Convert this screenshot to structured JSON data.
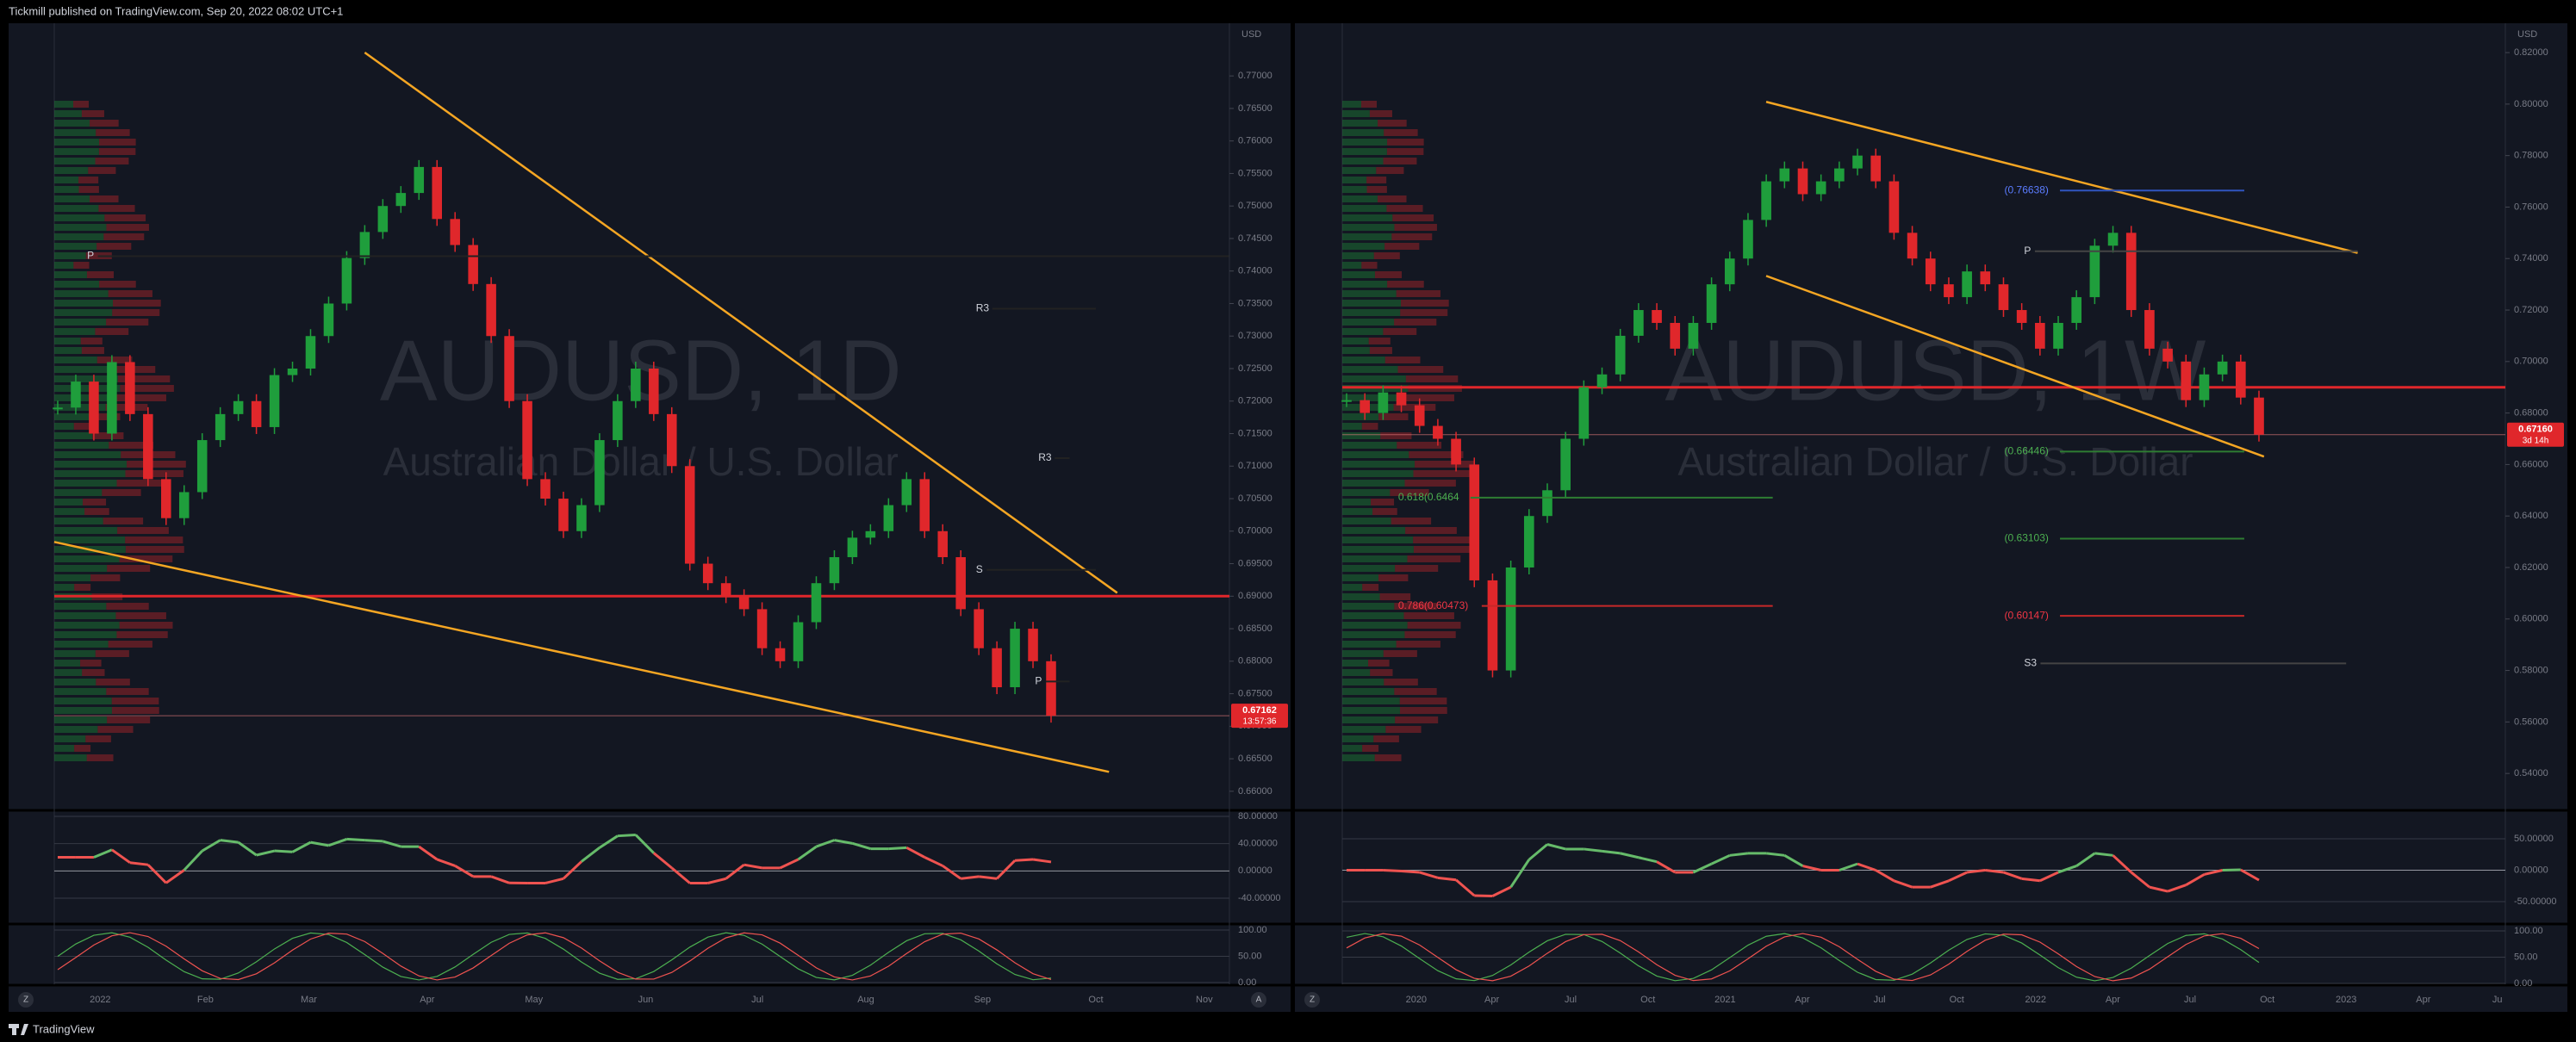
{
  "header": {
    "text": "Tickmill published on TradingView.com, Sep 20, 2022 08:02 UTC+1"
  },
  "footer": {
    "brand": "TradingView"
  },
  "charts": [
    {
      "type": "candlestick",
      "symbol": "AUDUSD, 1D",
      "name": "Australian Dollar / U.S. Dollar",
      "currency": "USD",
      "ylim": [
        0.6572,
        0.7781
      ],
      "yticks": [
        {
          "value": 0.77,
          "label": "0.77000"
        },
        {
          "value": 0.765,
          "label": "0.76500"
        },
        {
          "value": 0.76,
          "label": "0.76000"
        },
        {
          "value": 0.755,
          "label": "0.75500"
        },
        {
          "value": 0.75,
          "label": "0.75000"
        },
        {
          "value": 0.745,
          "label": "0.74500"
        },
        {
          "value": 0.74,
          "label": "0.74000"
        },
        {
          "value": 0.735,
          "label": "0.73500"
        },
        {
          "value": 0.73,
          "label": "0.73000"
        },
        {
          "value": 0.725,
          "label": "0.72500"
        },
        {
          "value": 0.72,
          "label": "0.72000"
        },
        {
          "value": 0.715,
          "label": "0.71500"
        },
        {
          "value": 0.71,
          "label": "0.71000"
        },
        {
          "value": 0.705,
          "label": "0.70500"
        },
        {
          "value": 0.7,
          "label": "0.70000"
        },
        {
          "value": 0.695,
          "label": "0.69500"
        },
        {
          "value": 0.69,
          "label": "0.69000"
        },
        {
          "value": 0.685,
          "label": "0.68500"
        },
        {
          "value": 0.68,
          "label": "0.68000"
        },
        {
          "value": 0.675,
          "label": "0.67500"
        },
        {
          "value": 0.67,
          "label": "0.67000"
        },
        {
          "value": 0.665,
          "label": "0.66500"
        },
        {
          "value": 0.66,
          "label": "0.66000"
        }
      ],
      "x_labels": [
        "2022",
        "Feb",
        "Mar",
        "Apr",
        "May",
        "Jun",
        "Jul",
        "Aug",
        "Sep",
        "Oct",
        "Nov"
      ],
      "values": [
        0.719,
        0.723,
        0.715,
        0.726,
        0.718,
        0.708,
        0.702,
        0.706,
        0.714,
        0.718,
        0.72,
        0.716,
        0.724,
        0.725,
        0.73,
        0.735,
        0.742,
        0.746,
        0.75,
        0.752,
        0.756,
        0.748,
        0.744,
        0.738,
        0.73,
        0.72,
        0.708,
        0.705,
        0.7,
        0.704,
        0.714,
        0.72,
        0.725,
        0.718,
        0.71,
        0.695,
        0.692,
        0.69,
        0.688,
        0.682,
        0.68,
        0.686,
        0.692,
        0.696,
        0.699,
        0.7,
        0.704,
        0.708,
        0.7,
        0.696,
        0.688,
        0.682,
        0.676,
        0.685,
        0.68,
        0.67162
      ],
      "key_level": 0.69,
      "last_price_label": "0.67162",
      "countdown": "13:57:36",
      "annotations": [
        "R3",
        "R3",
        "P",
        "P",
        "S"
      ],
      "rsi_ticks": [
        {
          "value": 80,
          "label": "80.00000"
        },
        {
          "value": 40,
          "label": "40.00000"
        },
        {
          "value": 0,
          "label": "0.00000"
        },
        {
          "value": -40,
          "label": "-40.00000"
        }
      ],
      "stoch_ticks": [
        {
          "value": 100,
          "label": "100.00"
        },
        {
          "value": 50,
          "label": "50.00"
        },
        {
          "value": 0,
          "label": "0.00"
        }
      ],
      "scale_buttons": [
        "Z",
        "A"
      ]
    },
    {
      "type": "candlestick",
      "symbol": "AUDUSD, 1W",
      "name": "Australian Dollar / U.S. Dollar",
      "currency": "USD",
      "ylim": [
        0.526,
        0.8314
      ],
      "yticks": [
        {
          "value": 0.82,
          "label": "0.82000"
        },
        {
          "value": 0.8,
          "label": "0.80000"
        },
        {
          "value": 0.78,
          "label": "0.78000"
        },
        {
          "value": 0.76,
          "label": "0.76000"
        },
        {
          "value": 0.74,
          "label": "0.74000"
        },
        {
          "value": 0.72,
          "label": "0.72000"
        },
        {
          "value": 0.7,
          "label": "0.70000"
        },
        {
          "value": 0.68,
          "label": "0.68000"
        },
        {
          "value": 0.66,
          "label": "0.66000"
        },
        {
          "value": 0.64,
          "label": "0.64000"
        },
        {
          "value": 0.62,
          "label": "0.62000"
        },
        {
          "value": 0.6,
          "label": "0.60000"
        },
        {
          "value": 0.58,
          "label": "0.58000"
        },
        {
          "value": 0.56,
          "label": "0.56000"
        },
        {
          "value": 0.54,
          "label": "0.54000"
        }
      ],
      "x_labels": [
        "2020",
        "Apr",
        "Jul",
        "Oct",
        "2021",
        "Apr",
        "Jul",
        "Oct",
        "2022",
        "Apr",
        "Jul",
        "Oct",
        "2023",
        "Apr",
        "Ju"
      ],
      "values": [
        0.685,
        0.68,
        0.688,
        0.683,
        0.675,
        0.67,
        0.66,
        0.615,
        0.58,
        0.62,
        0.64,
        0.65,
        0.67,
        0.69,
        0.695,
        0.71,
        0.72,
        0.715,
        0.705,
        0.715,
        0.73,
        0.74,
        0.755,
        0.77,
        0.775,
        0.765,
        0.77,
        0.775,
        0.78,
        0.77,
        0.75,
        0.74,
        0.73,
        0.725,
        0.735,
        0.73,
        0.72,
        0.715,
        0.705,
        0.715,
        0.725,
        0.745,
        0.75,
        0.72,
        0.705,
        0.7,
        0.685,
        0.695,
        0.7,
        0.686,
        0.6716
      ],
      "key_level": 0.69,
      "last_price_label": "0.67160",
      "countdown": "3d 14h",
      "annotations": [
        "(0.76638)",
        "P",
        "(0.66446)",
        "0.618(0.6464",
        "(0.63103)",
        "0.786(0.60473)",
        "(0.60147)",
        "S3"
      ],
      "rsi_ticks": [
        {
          "value": 50,
          "label": "50.00000"
        },
        {
          "value": 0,
          "label": "0.00000"
        },
        {
          "value": -50,
          "label": "-50.00000"
        }
      ],
      "stoch_ticks": [
        {
          "value": 100,
          "label": "100.00"
        },
        {
          "value": 50,
          "label": "50.00"
        },
        {
          "value": 0,
          "label": "0.00"
        }
      ],
      "scale_buttons": [
        "Z"
      ]
    }
  ]
}
